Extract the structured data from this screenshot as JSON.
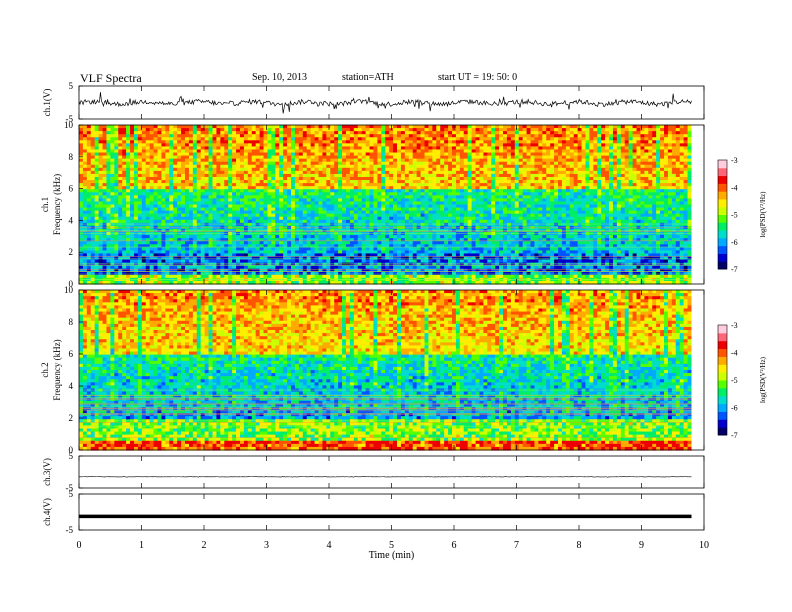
{
  "header": {
    "title": "VLF Spectra",
    "date": "Sep. 10, 2013",
    "station": "station=ATH",
    "start_ut": "start  UT =   19: 50: 0"
  },
  "colorbar_colors": [
    "#000066",
    "#0000cc",
    "#0055ff",
    "#00aaff",
    "#00ddcc",
    "#00ee66",
    "#55ff00",
    "#ccff00",
    "#ffee00",
    "#ffaa00",
    "#ff5500",
    "#ee0000",
    "#ff6677",
    "#ffccdd"
  ],
  "chart_data": [
    {
      "type": "line",
      "name": "ch1-waveform",
      "ylabel": "ch.1(V)",
      "ylim": [
        -5,
        5
      ],
      "yticks": [
        "5",
        "-5"
      ],
      "xlim": [
        0,
        10
      ],
      "x_extent": 9.8,
      "baseline": -0.1,
      "amplitude": 0.9,
      "color": "#000000"
    },
    {
      "type": "heatmap",
      "name": "ch1-spectrogram",
      "ylabel": "Frequency  (kHz)",
      "channel_label": "ch.1",
      "ylim": [
        0,
        10
      ],
      "yticks": [
        "0",
        "2",
        "4",
        "6",
        "8",
        "10"
      ],
      "xlim": [
        0,
        9.8
      ],
      "colorbar": {
        "label": "log(PSD(V²/Hz)",
        "range": [
          -7,
          -3
        ],
        "ticks": [
          "-3",
          "-4",
          "-5",
          "-6",
          "-7"
        ]
      },
      "high_band_level": -3.5,
      "mid_band_level": -5.2,
      "low_band_level": -6.1
    },
    {
      "type": "heatmap",
      "name": "ch2-spectrogram",
      "ylabel": "Frequency  (kHz)",
      "channel_label": "ch.2",
      "ylim": [
        0,
        10
      ],
      "yticks": [
        "0",
        "2",
        "4",
        "6",
        "8",
        "10"
      ],
      "xlim": [
        0,
        9.8
      ],
      "colorbar": {
        "label": "log(PSD(V²/Hz)",
        "range": [
          -7,
          -3
        ],
        "ticks": [
          "-3",
          "-4",
          "-5",
          "-6",
          "-7"
        ]
      },
      "high_band_level": -3.6,
      "mid_band_level": -5.3,
      "low_band_level": -4.7
    },
    {
      "type": "line",
      "name": "ch3-waveform",
      "ylabel": "ch.3(V)",
      "ylim": [
        -5,
        5
      ],
      "yticks": [
        "5",
        "-5"
      ],
      "xlim": [
        0,
        10
      ],
      "x_extent": 9.8,
      "baseline": -1.5,
      "amplitude": 0.05,
      "color": "#000000"
    },
    {
      "type": "line",
      "name": "ch4-waveform",
      "ylabel": "ch.4(V)",
      "ylim": [
        -5,
        5
      ],
      "yticks": [
        "5",
        "-5"
      ],
      "xlim": [
        0,
        10
      ],
      "x_extent": 9.8,
      "baseline": -1.2,
      "amplitude": 0.0,
      "color": "#000000"
    }
  ],
  "xaxis": {
    "label": "Time  (min)",
    "ticks": [
      "0",
      "1",
      "2",
      "3",
      "4",
      "5",
      "6",
      "7",
      "8",
      "9",
      "10"
    ],
    "range": [
      0,
      10
    ]
  }
}
